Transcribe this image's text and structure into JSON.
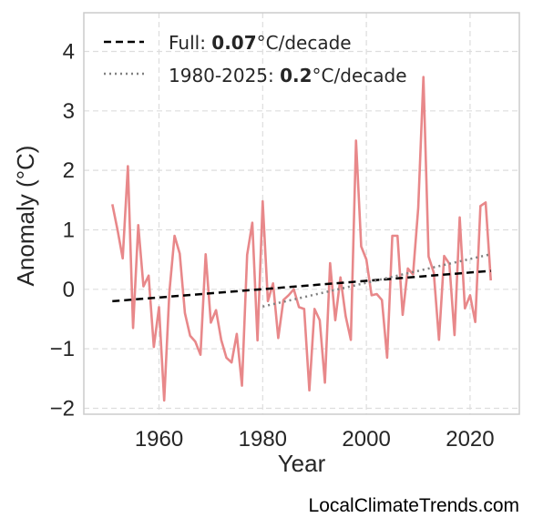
{
  "chart_data": {
    "type": "line",
    "xlabel": "Year",
    "ylabel": "Anomaly (°C)",
    "xlim": [
      1945.5,
      2029.5
    ],
    "ylim": [
      -2.1,
      4.65
    ],
    "x_ticks": [
      1960,
      1980,
      2000,
      2020
    ],
    "x_tick_labels": [
      "1960",
      "1980",
      "2000",
      "2020"
    ],
    "y_ticks": [
      -2,
      -1,
      0,
      1,
      2,
      3,
      4
    ],
    "y_tick_labels": [
      "−2",
      "−1",
      "0",
      "1",
      "2",
      "3",
      "4"
    ],
    "grid": true,
    "legend_position": "top-left",
    "colors": {
      "anomaly": "#e8888a",
      "full_trend": "#000000",
      "recent_trend": "#808080"
    },
    "series": [
      {
        "x": [
          1951,
          1952,
          1953,
          1954,
          1955,
          1956,
          1957,
          1958,
          1959,
          1960,
          1961,
          1962,
          1963,
          1964,
          1965,
          1966,
          1967,
          1968,
          1969,
          1970,
          1971,
          1972,
          1973,
          1974,
          1975,
          1976,
          1977,
          1978,
          1979,
          1980,
          1981,
          1982,
          1983,
          1984,
          1985,
          1986,
          1987,
          1988,
          1989,
          1990,
          1991,
          1992,
          1993,
          1994,
          1995,
          1996,
          1997,
          1998,
          1999,
          2000,
          2001,
          2002,
          2003,
          2004,
          2005,
          2006,
          2007,
          2008,
          2009,
          2010,
          2011,
          2012,
          2013,
          2014,
          2015,
          2016,
          2017,
          2018,
          2019,
          2020,
          2021,
          2022,
          2023,
          2024
        ],
        "values": [
          1.43,
          1.0,
          0.52,
          2.07,
          -0.65,
          1.08,
          0.05,
          0.23,
          -0.97,
          -0.3,
          -1.87,
          -0.05,
          0.9,
          0.6,
          -0.4,
          -0.78,
          -0.88,
          -1.1,
          0.59,
          -0.56,
          -0.35,
          -0.85,
          -1.15,
          -1.23,
          -0.75,
          -1.62,
          0.58,
          1.12,
          -0.86,
          1.48,
          -0.2,
          0.1,
          -0.82,
          -0.18,
          -0.1,
          0.0,
          -0.3,
          -0.33,
          -1.7,
          -0.33,
          -0.52,
          -1.57,
          0.44,
          -0.52,
          0.2,
          -0.45,
          -0.85,
          2.5,
          0.72,
          0.5,
          -0.1,
          -0.08,
          -0.18,
          -1.15,
          0.9,
          0.9,
          -0.43,
          0.35,
          0.25,
          1.37,
          3.57,
          0.55,
          0.28,
          -0.85,
          0.56,
          0.43,
          -0.77,
          1.21,
          -0.32,
          -0.1,
          -0.55,
          1.4,
          1.46,
          0.15
        ]
      }
    ],
    "trend_full": {
      "x": [
        1951,
        2024
      ],
      "values": [
        -0.2,
        0.31
      ],
      "rate": "0.07"
    },
    "trend_recent": {
      "x": [
        1980,
        2024
      ],
      "values": [
        -0.29,
        0.59
      ],
      "rate": "0.2"
    }
  },
  "legend": {
    "full_prefix": "Full: ",
    "full_value": "0.07",
    "full_suffix": "°C/decade",
    "recent_prefix": "1980-2025: ",
    "recent_value": "0.2",
    "recent_suffix": "°C/decade"
  },
  "watermark": "LocalClimateTrends.com"
}
